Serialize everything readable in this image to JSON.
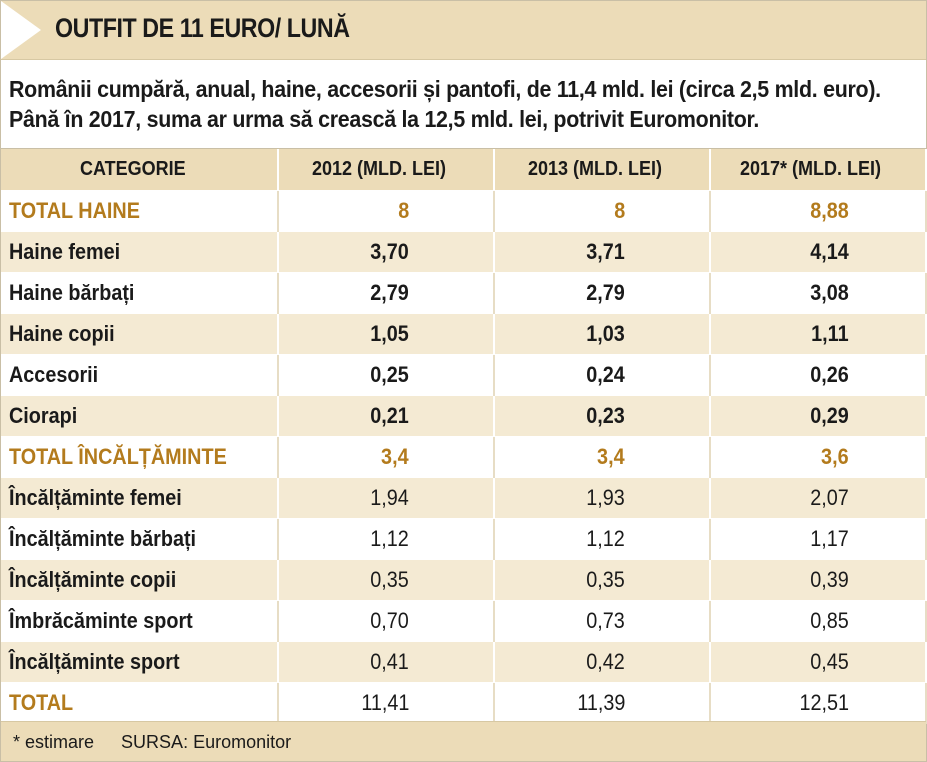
{
  "header": {
    "title": "OUTFIT DE 11 EURO/ LUNĂ"
  },
  "intro": "Românii cumpără, anual, haine, accesorii și pantofi, de 11,4 mld. lei (circa 2,5 mld. euro). Până în 2017, suma ar urma să crească la 12,5 mld. lei, potrivit Euromonitor.",
  "table": {
    "columns": [
      "CATEGORIE",
      "2012 (MLD. LEI)",
      "2013 (MLD. LEI)",
      "2017* (MLD. LEI)"
    ],
    "rows": [
      {
        "name": "TOTAL HAINE",
        "v2012": "8",
        "v2013": "8",
        "v2017": "8,88"
      },
      {
        "name": "Haine femei",
        "v2012": "3,70",
        "v2013": "3,71",
        "v2017": "4,14"
      },
      {
        "name": "Haine bărbați",
        "v2012": "2,79",
        "v2013": "2,79",
        "v2017": "3,08"
      },
      {
        "name": "Haine copii",
        "v2012": "1,05",
        "v2013": "1,03",
        "v2017": "1,11"
      },
      {
        "name": "Accesorii",
        "v2012": "0,25",
        "v2013": "0,24",
        "v2017": "0,26"
      },
      {
        "name": "Ciorapi",
        "v2012": "0,21",
        "v2013": "0,23",
        "v2017": "0,29"
      },
      {
        "name": "TOTAL ÎNCĂLȚĂMINTE",
        "v2012": "3,4",
        "v2013": "3,4",
        "v2017": "3,6"
      },
      {
        "name": "Încălțăminte femei",
        "v2012": "1,94",
        "v2013": "1,93",
        "v2017": "2,07"
      },
      {
        "name": "Încălțăminte bărbați",
        "v2012": "1,12",
        "v2013": "1,12",
        "v2017": "1,17"
      },
      {
        "name": "Încălțăminte copii",
        "v2012": "0,35",
        "v2013": "0,35",
        "v2017": "0,39"
      },
      {
        "name": "Îmbrăcăminte sport",
        "v2012": "0,70",
        "v2013": "0,73",
        "v2017": "0,85"
      },
      {
        "name": "Încălțăminte sport",
        "v2012": "0,41",
        "v2013": "0,42",
        "v2017": "0,45"
      },
      {
        "name": "TOTAL",
        "v2012": "11,41",
        "v2013": "11,39",
        "v2017": "12,51"
      }
    ]
  },
  "footer": {
    "note": "* estimare",
    "source": "SURSA: Euromonitor"
  },
  "colors": {
    "header_bg": "#ecdcb8",
    "row_shade": "#f4ead3",
    "accent": "#b37b1d"
  }
}
